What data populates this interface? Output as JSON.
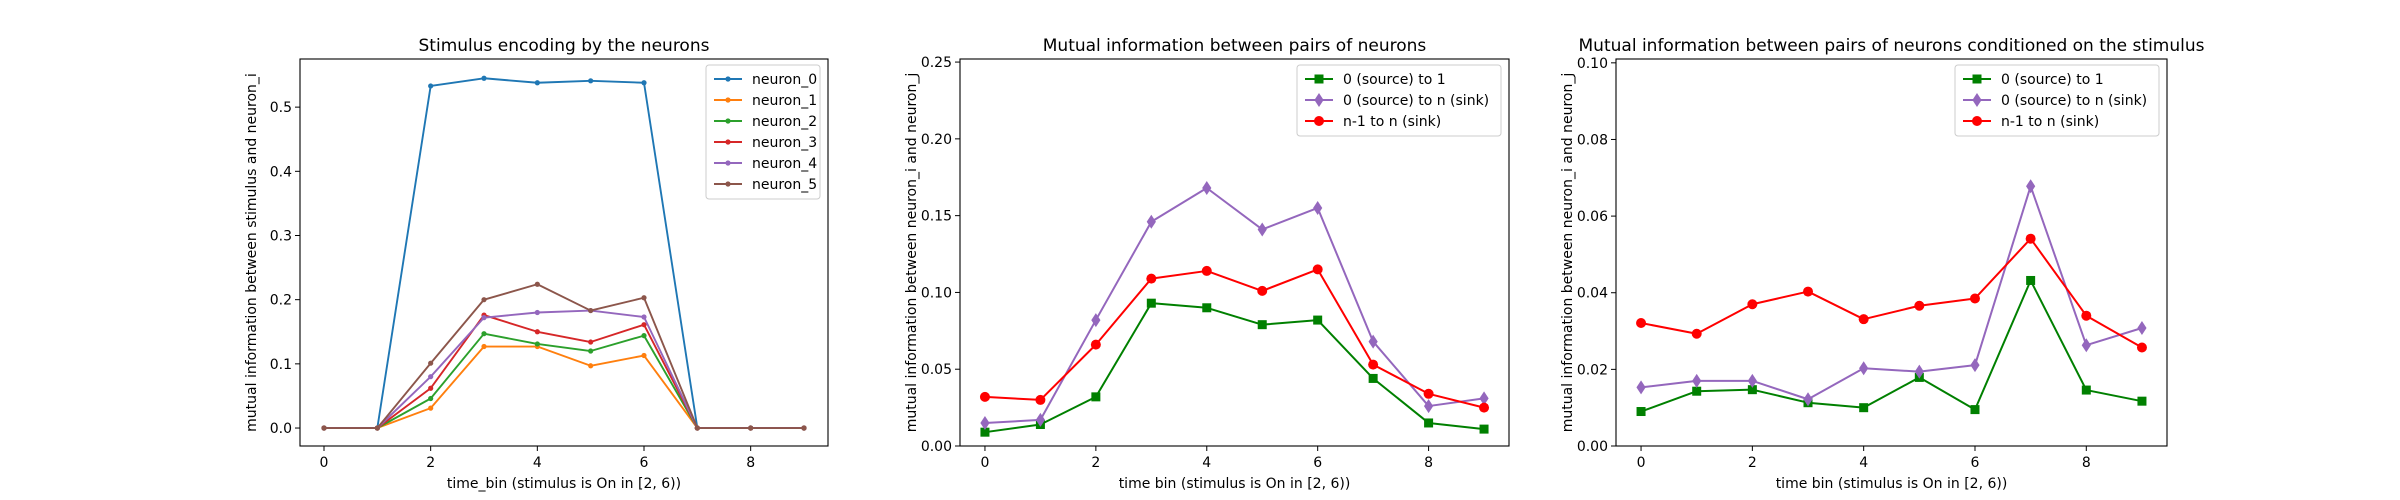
{
  "chart_data": [
    {
      "type": "line",
      "title": "Stimulus encoding by the neurons",
      "xlabel": "time_bin (stimulus is On in [2, 6))",
      "ylabel": "mutual information between stimulus and neuron_i",
      "xlim": [
        -0.45,
        9.45
      ],
      "ylim": [
        -0.028,
        0.575
      ],
      "xticks": [
        0,
        2,
        4,
        6,
        8
      ],
      "yticks": [
        0.0,
        0.1,
        0.2,
        0.3,
        0.4,
        0.5
      ],
      "ytick_labels": [
        "0.0",
        "0.1",
        "0.2",
        "0.3",
        "0.4",
        "0.5"
      ],
      "legend_position": "upper right",
      "x": [
        0,
        1,
        2,
        3,
        4,
        5,
        6,
        7,
        8,
        9
      ],
      "series": [
        {
          "name": "neuron_0",
          "color": "#1f77b4",
          "marker": "dot",
          "values": [
            0,
            0,
            0.533,
            0.545,
            0.538,
            0.541,
            0.538,
            0,
            0,
            0
          ]
        },
        {
          "name": "neuron_1",
          "color": "#ff7f0e",
          "marker": "dot",
          "values": [
            0,
            0,
            0.031,
            0.127,
            0.127,
            0.097,
            0.113,
            0,
            0,
            0
          ]
        },
        {
          "name": "neuron_2",
          "color": "#2ca02c",
          "marker": "dot",
          "values": [
            0,
            0,
            0.046,
            0.147,
            0.131,
            0.12,
            0.144,
            0,
            0,
            0
          ]
        },
        {
          "name": "neuron_3",
          "color": "#d62728",
          "marker": "dot",
          "values": [
            0,
            0,
            0.062,
            0.176,
            0.15,
            0.134,
            0.161,
            0,
            0,
            0
          ]
        },
        {
          "name": "neuron_4",
          "color": "#9467bd",
          "marker": "dot",
          "values": [
            0,
            0,
            0.08,
            0.172,
            0.18,
            0.183,
            0.173,
            0,
            0,
            0
          ]
        },
        {
          "name": "neuron_5",
          "color": "#8c564b",
          "marker": "dot",
          "values": [
            0,
            0,
            0.101,
            0.2,
            0.224,
            0.183,
            0.203,
            0,
            0,
            0
          ]
        }
      ]
    },
    {
      "type": "line",
      "title": "Mutual information between pairs of neurons",
      "xlabel": "time bin (stimulus is On in [2, 6))",
      "ylabel": "mutual information between neuron_i and neuron_j",
      "xlim": [
        -0.45,
        9.45
      ],
      "ylim": [
        0,
        0.252
      ],
      "xticks": [
        0,
        2,
        4,
        6,
        8
      ],
      "yticks": [
        0.0,
        0.05,
        0.1,
        0.15,
        0.2,
        0.25
      ],
      "ytick_labels": [
        "0.00",
        "0.05",
        "0.10",
        "0.15",
        "0.20",
        "0.25"
      ],
      "legend_position": "upper right",
      "x": [
        0,
        1,
        2,
        3,
        4,
        5,
        6,
        7,
        8,
        9
      ],
      "series": [
        {
          "name": "0 (source) to 1",
          "color": "#008000",
          "marker": "square",
          "values": [
            0.009,
            0.014,
            0.032,
            0.093,
            0.09,
            0.079,
            0.082,
            0.044,
            0.015,
            0.011
          ]
        },
        {
          "name": "0 (source) to n (sink)",
          "color": "#9467bd",
          "marker": "diamond",
          "values": [
            0.015,
            0.017,
            0.082,
            0.146,
            0.168,
            0.141,
            0.155,
            0.068,
            0.026,
            0.031
          ]
        },
        {
          "name": "n-1 to n (sink)",
          "color": "#ff0000",
          "marker": "circle",
          "values": [
            0.032,
            0.03,
            0.066,
            0.109,
            0.114,
            0.101,
            0.115,
            0.053,
            0.034,
            0.025
          ]
        }
      ]
    },
    {
      "type": "line",
      "title": "Mutual information between pairs of neurons conditioned on the stimulus",
      "xlabel": "time bin (stimulus is On in [2, 6))",
      "ylabel": "mutual information between neuron_i and neuron_j",
      "xlim": [
        -0.45,
        9.45
      ],
      "ylim": [
        0,
        0.101
      ],
      "xticks": [
        0,
        2,
        4,
        6,
        8
      ],
      "yticks": [
        0.0,
        0.02,
        0.04,
        0.06,
        0.08,
        0.1
      ],
      "ytick_labels": [
        "0.00",
        "0.02",
        "0.04",
        "0.06",
        "0.08",
        "0.10"
      ],
      "legend_position": "upper right",
      "x": [
        0,
        1,
        2,
        3,
        4,
        5,
        6,
        7,
        8,
        9
      ],
      "series": [
        {
          "name": "0 (source) to 1",
          "color": "#008000",
          "marker": "square",
          "values": [
            0.009,
            0.0143,
            0.0147,
            0.0113,
            0.01,
            0.0179,
            0.0095,
            0.0432,
            0.0146,
            0.0117
          ]
        },
        {
          "name": "0 (source) to n (sink)",
          "color": "#9467bd",
          "marker": "diamond",
          "values": [
            0.0153,
            0.017,
            0.017,
            0.0122,
            0.0203,
            0.0194,
            0.0211,
            0.0678,
            0.0263,
            0.0308
          ]
        },
        {
          "name": "n-1 to n (sink)",
          "color": "#ff0000",
          "marker": "circle",
          "values": [
            0.0321,
            0.0293,
            0.037,
            0.0403,
            0.0331,
            0.0366,
            0.0385,
            0.0541,
            0.034,
            0.0257
          ]
        }
      ]
    }
  ]
}
